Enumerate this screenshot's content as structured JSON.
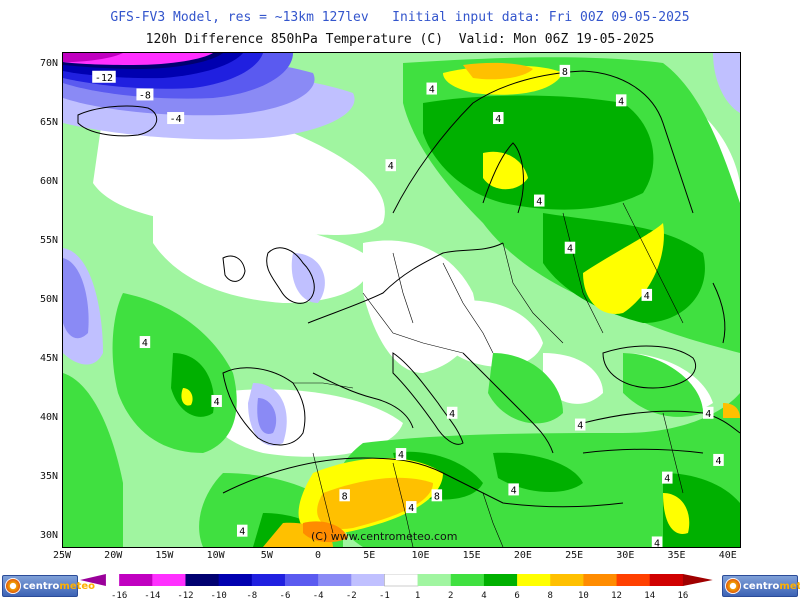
{
  "title": {
    "line1": "GFS-FV3 Model, res = ~13km 127lev   Initial input data: Fri 00Z 09-05-2025",
    "line2": "120h Difference 850hPa Temperature (C)  Valid: Mon 06Z 19-05-2025"
  },
  "map": {
    "lat_labels": [
      "70N",
      "65N",
      "60N",
      "55N",
      "50N",
      "45N",
      "40N",
      "35N",
      "30N"
    ],
    "lon_labels": [
      "25W",
      "20W",
      "15W",
      "10W",
      "5W",
      "0",
      "5E",
      "10E",
      "15E",
      "20E",
      "25E",
      "30E",
      "35E",
      "40E"
    ],
    "copyright": "(C) www.centrometeo.com",
    "contour_labels": [
      {
        "text": "-12",
        "lon": -21,
        "lat": 69
      },
      {
        "text": "-8",
        "lon": -17,
        "lat": 67.5
      },
      {
        "text": "-4",
        "lon": -14,
        "lat": 65.5
      },
      {
        "text": "8",
        "lon": 24,
        "lat": 69.5
      },
      {
        "text": "4",
        "lon": 11,
        "lat": 68
      },
      {
        "text": "4",
        "lon": 29.5,
        "lat": 67
      },
      {
        "text": "4",
        "lon": 17.5,
        "lat": 65.5
      },
      {
        "text": "4",
        "lon": 7,
        "lat": 61.5
      },
      {
        "text": "4",
        "lon": 21.5,
        "lat": 58.5
      },
      {
        "text": "4",
        "lon": 24.5,
        "lat": 54.5
      },
      {
        "text": "4",
        "lon": 32,
        "lat": 50.5
      },
      {
        "text": "4",
        "lon": -17,
        "lat": 46.5
      },
      {
        "text": "4",
        "lon": -10,
        "lat": 41.5
      },
      {
        "text": "4",
        "lon": 38,
        "lat": 40.5
      },
      {
        "text": "4",
        "lon": 13,
        "lat": 40.5
      },
      {
        "text": "4",
        "lon": 25.5,
        "lat": 39.5
      },
      {
        "text": "4",
        "lon": 39,
        "lat": 36.5
      },
      {
        "text": "4",
        "lon": 8,
        "lat": 37
      },
      {
        "text": "8",
        "lon": 11.5,
        "lat": 33.5
      },
      {
        "text": "8",
        "lon": 2.5,
        "lat": 33.5
      },
      {
        "text": "4",
        "lon": 9,
        "lat": 32.5
      },
      {
        "text": "4",
        "lon": 19,
        "lat": 34
      },
      {
        "text": "4",
        "lon": 34,
        "lat": 35
      },
      {
        "text": "4",
        "lon": -7.5,
        "lat": 30.5
      },
      {
        "text": "4",
        "lon": 33,
        "lat": 29.5
      }
    ]
  },
  "colorbar": {
    "labels": [
      "-16",
      "-14",
      "-12",
      "-10",
      "-8",
      "-6",
      "-4",
      "-2",
      "-1",
      "1",
      "2",
      "4",
      "6",
      "8",
      "10",
      "12",
      "14",
      "16"
    ],
    "colors": [
      "#9a009a",
      "#c000c0",
      "#ff30ff",
      "#000070",
      "#0000b0",
      "#2020e0",
      "#5a5af0",
      "#8a8af5",
      "#c0c0ff",
      "#ffffff",
      "#a0f5a0",
      "#40e040",
      "#00b000",
      "#ffff00",
      "#ffc000",
      "#ff8c00",
      "#ff4000",
      "#d00000",
      "#a00000"
    ]
  },
  "logos": {
    "left": {
      "text_main": "centro",
      "text_accent": "meteo"
    },
    "right": {
      "text_main": "centro",
      "text_accent": "meteo"
    }
  }
}
